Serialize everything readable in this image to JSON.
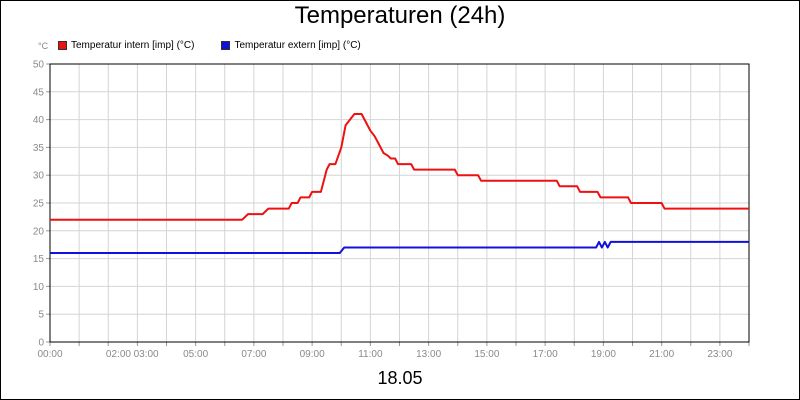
{
  "chart_data": {
    "type": "line",
    "title": "Temperaturen (24h)",
    "footer": "18.05",
    "y_unit": "°C",
    "ylim": [
      0,
      50
    ],
    "xlim": [
      0,
      24
    ],
    "y_ticks": [
      "0",
      "5",
      "10",
      "15",
      "20",
      "25",
      "30",
      "35",
      "40",
      "45",
      "50"
    ],
    "x_ticks": [
      {
        "x": 0,
        "label": "00:00"
      },
      {
        "x": 2.35,
        "label": "02:00"
      },
      {
        "x": 3.3,
        "label": "03:00"
      },
      {
        "x": 5,
        "label": "05:00"
      },
      {
        "x": 7,
        "label": "07:00"
      },
      {
        "x": 9,
        "label": "09:00"
      },
      {
        "x": 11,
        "label": "11:00"
      },
      {
        "x": 13,
        "label": "13:00"
      },
      {
        "x": 15,
        "label": "15:00"
      },
      {
        "x": 17,
        "label": "17:00"
      },
      {
        "x": 19,
        "label": "19:00"
      },
      {
        "x": 21,
        "label": "21:00"
      },
      {
        "x": 23,
        "label": "23:00"
      }
    ],
    "grid": true,
    "legend": "top-left",
    "series": [
      {
        "name": "Temperatur intern [imp] (°C)",
        "color": "#ee1111",
        "points": [
          [
            0,
            22
          ],
          [
            6.6,
            22
          ],
          [
            6.8,
            23
          ],
          [
            7.3,
            23
          ],
          [
            7.5,
            24
          ],
          [
            8.2,
            24
          ],
          [
            8.3,
            25
          ],
          [
            8.5,
            25
          ],
          [
            8.6,
            26
          ],
          [
            8.9,
            26
          ],
          [
            9.0,
            27
          ],
          [
            9.3,
            27
          ],
          [
            9.5,
            31
          ],
          [
            9.6,
            32
          ],
          [
            9.8,
            32
          ],
          [
            10.0,
            35
          ],
          [
            10.15,
            39
          ],
          [
            10.3,
            40
          ],
          [
            10.45,
            41
          ],
          [
            10.7,
            41
          ],
          [
            10.85,
            39.5
          ],
          [
            11.0,
            38
          ],
          [
            11.15,
            37
          ],
          [
            11.3,
            35.5
          ],
          [
            11.45,
            34
          ],
          [
            11.6,
            33.5
          ],
          [
            11.7,
            33
          ],
          [
            11.85,
            33
          ],
          [
            11.95,
            32
          ],
          [
            12.4,
            32
          ],
          [
            12.5,
            31
          ],
          [
            13.9,
            31
          ],
          [
            14.0,
            30
          ],
          [
            14.7,
            30
          ],
          [
            14.8,
            29
          ],
          [
            17.4,
            29
          ],
          [
            17.5,
            28
          ],
          [
            18.1,
            28
          ],
          [
            18.2,
            27
          ],
          [
            18.8,
            27
          ],
          [
            18.9,
            26
          ],
          [
            19.85,
            26
          ],
          [
            19.95,
            25
          ],
          [
            21.0,
            25
          ],
          [
            21.1,
            24
          ],
          [
            24,
            24
          ]
        ]
      },
      {
        "name": "Temperatur extern [imp] (°C)",
        "color": "#1111dd",
        "points": [
          [
            0,
            16
          ],
          [
            9.95,
            16
          ],
          [
            10.1,
            17
          ],
          [
            18.75,
            17
          ],
          [
            18.85,
            18
          ],
          [
            18.95,
            17
          ],
          [
            19.05,
            18
          ],
          [
            19.15,
            17
          ],
          [
            19.25,
            18
          ],
          [
            24,
            18
          ]
        ]
      }
    ]
  }
}
